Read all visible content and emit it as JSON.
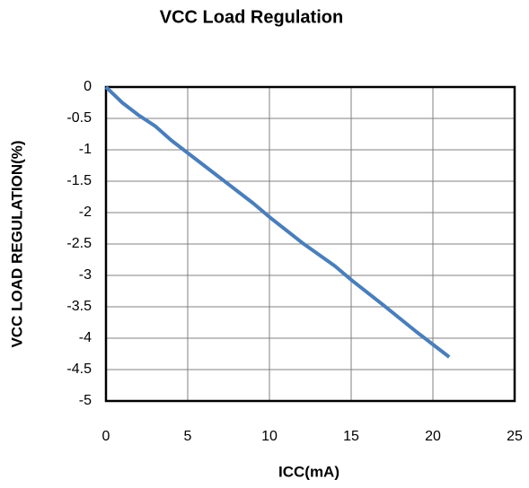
{
  "chart_data": {
    "type": "line",
    "title": "VCC Load Regulation",
    "x_label": "ICC(mA)",
    "y_label": "VCC LOAD REGULATION(%)",
    "x": [
      0,
      1,
      2,
      3,
      4,
      5,
      6,
      7,
      8,
      9,
      10,
      12,
      14,
      15,
      17,
      19,
      20,
      21
    ],
    "series": [
      {
        "name": "VCC Load Regulation",
        "color": "#4a7ebb",
        "values": [
          0,
          -0.25,
          -0.45,
          -0.62,
          -0.85,
          -1.05,
          -1.25,
          -1.45,
          -1.65,
          -1.85,
          -2.07,
          -2.48,
          -2.85,
          -3.07,
          -3.48,
          -3.9,
          -4.1,
          -4.3
        ]
      }
    ],
    "xlim": [
      0,
      25
    ],
    "xticks": [
      0,
      5,
      10,
      15,
      20,
      25
    ],
    "ylim": [
      -5,
      0
    ],
    "yticks": [
      0,
      -0.5,
      -1,
      -1.5,
      -2,
      -2.5,
      -3,
      -3.5,
      -4,
      -4.5,
      -5
    ],
    "grid": true
  }
}
